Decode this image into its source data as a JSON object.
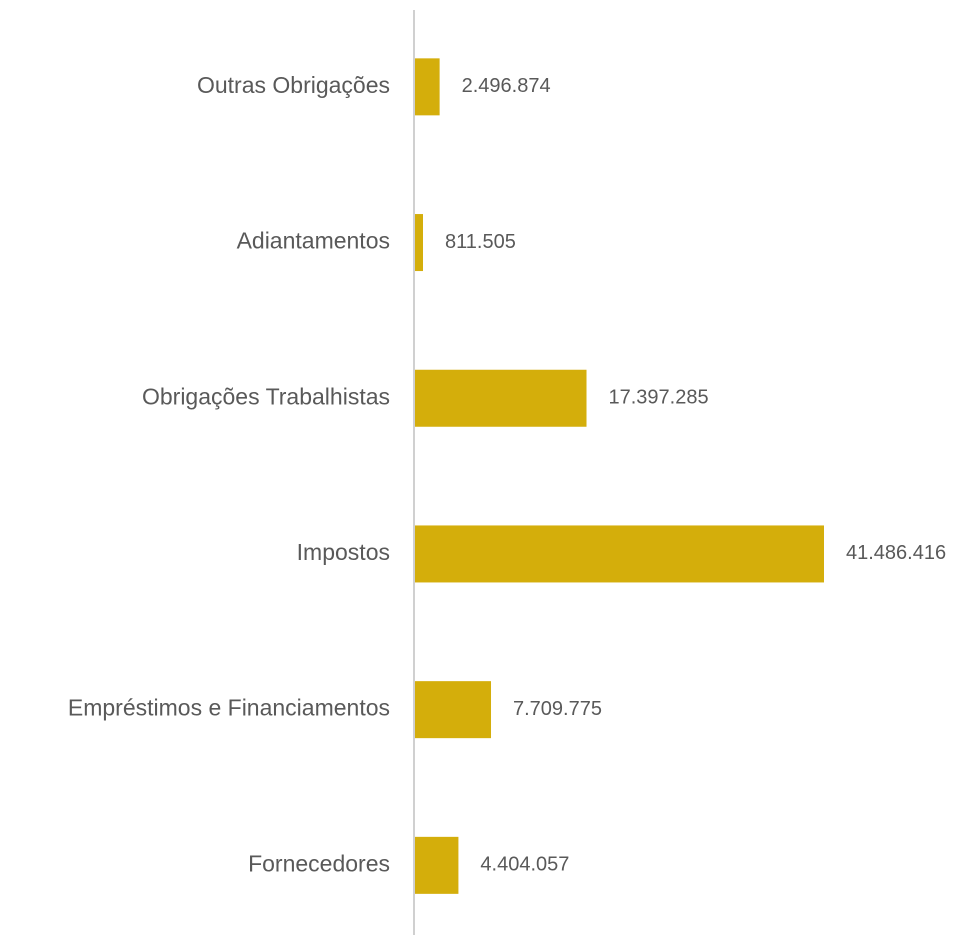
{
  "chart_data": {
    "type": "barh",
    "categories": [
      "Outras Obrigações",
      "Adiantamentos",
      "Obrigações Trabalhistas",
      "Impostos",
      "Empréstimos e Financiamentos",
      "Fornecedores"
    ],
    "values": [
      2496874,
      811505,
      17397285,
      41486416,
      7709775,
      4404057
    ],
    "value_labels": [
      "2.496.874",
      "811.505",
      "17.397.285",
      "41.486.416",
      "7.709.775",
      "4.404.057"
    ],
    "color": "#d4ae0b"
  }
}
